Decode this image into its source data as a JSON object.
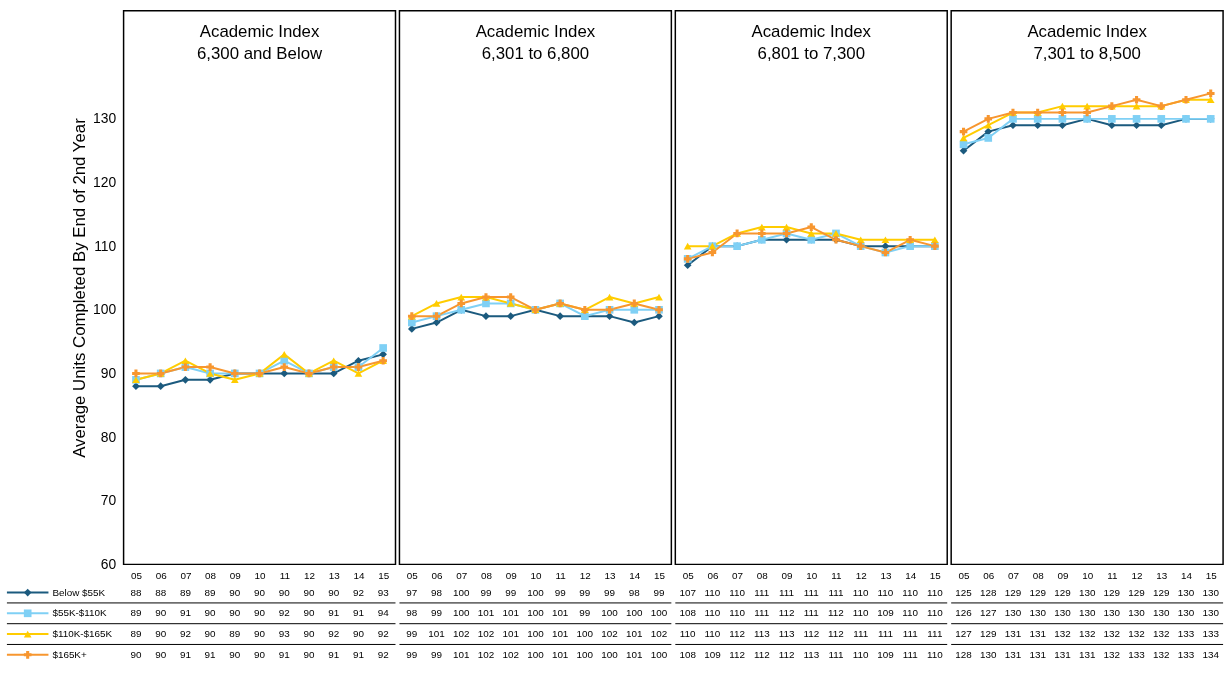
{
  "chart_data": [
    {
      "type": "line",
      "title": "Academic Index",
      "subtitle": "6,300 and Below",
      "ylabel": "Average Units Completed By End of 2nd Year",
      "categories": [
        "05",
        "06",
        "07",
        "08",
        "09",
        "10",
        "11",
        "12",
        "13",
        "14",
        "15"
      ],
      "ylim": [
        60,
        147
      ],
      "yticks": [
        60,
        70,
        80,
        90,
        100,
        110,
        120,
        130
      ],
      "data_labels": true,
      "legend": "bottom left",
      "series": [
        {
          "name": "Below $55K",
          "color": "#1b5a7e",
          "marker": "diamond",
          "values": [
            88,
            88,
            89,
            89,
            90,
            90,
            90,
            90,
            90,
            92,
            93
          ]
        },
        {
          "name": "$55K-$110K",
          "color": "#7fd0f5",
          "marker": "square",
          "values": [
            89,
            90,
            91,
            90,
            90,
            90,
            92,
            90,
            91,
            91,
            94
          ]
        },
        {
          "name": "$110K-$165K",
          "color": "#ffcc00",
          "marker": "triangle",
          "values": [
            89,
            90,
            92,
            90,
            89,
            90,
            93,
            90,
            92,
            90,
            92
          ]
        },
        {
          "name": "$165K+",
          "color": "#f7962f",
          "marker": "cross",
          "values": [
            90,
            90,
            91,
            91,
            90,
            90,
            91,
            90,
            91,
            91,
            92
          ]
        }
      ]
    },
    {
      "type": "line",
      "title": "Academic Index",
      "subtitle": "6,301 to 6,800",
      "categories": [
        "05",
        "06",
        "07",
        "08",
        "09",
        "10",
        "11",
        "12",
        "13",
        "14",
        "15"
      ],
      "ylim": [
        60,
        147
      ],
      "tick_labels": "x",
      "data_labels": true,
      "series": [
        {
          "color": "#1b5a7e",
          "marker": "diamond",
          "values": [
            97,
            98,
            100,
            99,
            99,
            100,
            99,
            99,
            99,
            98,
            99
          ]
        },
        {
          "color": "#7fd0f5",
          "marker": "square",
          "values": [
            98,
            99,
            100,
            101,
            101,
            100,
            101,
            99,
            100,
            100,
            100
          ]
        },
        {
          "color": "#ffcc00",
          "marker": "triangle",
          "values": [
            99,
            101,
            102,
            102,
            101,
            100,
            101,
            100,
            102,
            101,
            102
          ]
        },
        {
          "color": "#f7962f",
          "marker": "cross",
          "values": [
            99,
            99,
            101,
            102,
            102,
            100,
            101,
            100,
            100,
            101,
            100
          ]
        }
      ]
    },
    {
      "type": "line",
      "title": "Academic Index",
      "subtitle": "6,801 to 7,300",
      "categories": [
        "05",
        "06",
        "07",
        "08",
        "09",
        "10",
        "11",
        "12",
        "13",
        "14",
        "15"
      ],
      "ylim": [
        60,
        147
      ],
      "tick_labels": "x",
      "data_labels": true,
      "series": [
        {
          "color": "#1b5a7e",
          "marker": "diamond",
          "values": [
            107,
            110,
            110,
            111,
            111,
            111,
            111,
            110,
            110,
            110,
            110
          ]
        },
        {
          "color": "#7fd0f5",
          "marker": "square",
          "values": [
            108,
            110,
            110,
            111,
            112,
            111,
            112,
            110,
            109,
            110,
            110
          ]
        },
        {
          "color": "#ffcc00",
          "marker": "triangle",
          "values": [
            110,
            110,
            112,
            113,
            113,
            112,
            112,
            111,
            111,
            111,
            111
          ]
        },
        {
          "color": "#f7962f",
          "marker": "cross",
          "values": [
            108,
            109,
            112,
            112,
            112,
            113,
            111,
            110,
            109,
            111,
            110
          ]
        }
      ]
    },
    {
      "type": "line",
      "title": "Academic Index",
      "subtitle": "7,301 to 8,500",
      "categories": [
        "05",
        "06",
        "07",
        "08",
        "09",
        "10",
        "11",
        "12",
        "13",
        "14",
        "15"
      ],
      "ylim": [
        60,
        147
      ],
      "tick_labels": "x",
      "data_labels": true,
      "series": [
        {
          "color": "#1b5a7e",
          "marker": "diamond",
          "values": [
            125,
            128,
            129,
            129,
            129,
            130,
            129,
            129,
            129,
            130,
            130
          ]
        },
        {
          "color": "#7fd0f5",
          "marker": "square",
          "values": [
            126,
            127,
            130,
            130,
            130,
            130,
            130,
            130,
            130,
            130,
            130
          ]
        },
        {
          "color": "#ffcc00",
          "marker": "triangle",
          "values": [
            127,
            129,
            131,
            131,
            132,
            132,
            132,
            132,
            132,
            133,
            133
          ]
        },
        {
          "color": "#f7962f",
          "marker": "cross",
          "values": [
            128,
            130,
            131,
            131,
            131,
            131,
            132,
            133,
            132,
            133,
            134
          ]
        }
      ]
    }
  ]
}
